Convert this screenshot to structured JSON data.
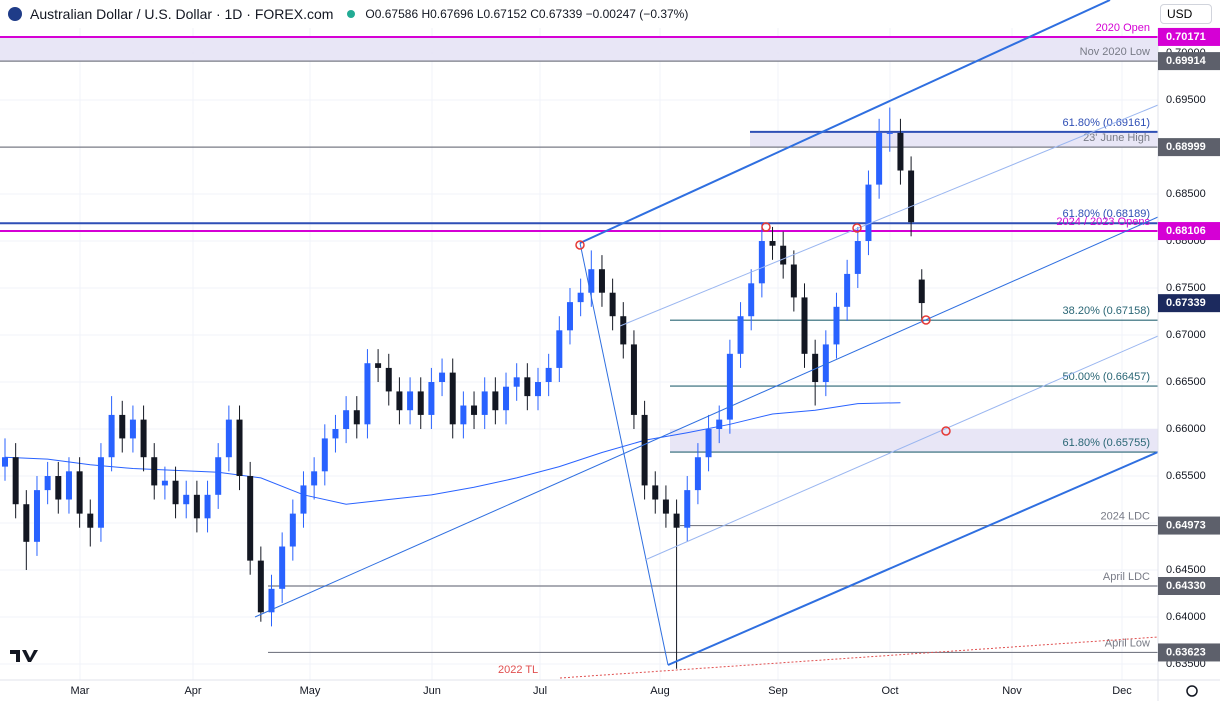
{
  "header": {
    "symbol": "Australian Dollar / U.S. Dollar · 1D · FOREX.com",
    "ohlc": "O0.67586 H0.67696 L0.67152 C0.67339 −0.00247 (−0.37%)",
    "currency": "USD"
  },
  "chart_data": {
    "type": "candlestick",
    "up_color": "#2962ff",
    "down_color": "#131722",
    "ylim": [
      0.6333,
      0.70564
    ],
    "yticks": [
      {
        "value": 0.635,
        "label": "0.63500"
      },
      {
        "value": 0.64,
        "label": "0.64000"
      },
      {
        "value": 0.645,
        "label": "0.64500"
      },
      {
        "value": 0.65,
        "label": "0.65000"
      },
      {
        "value": 0.655,
        "label": "0.65500"
      },
      {
        "value": 0.66,
        "label": "0.66000"
      },
      {
        "value": 0.665,
        "label": "0.66500"
      },
      {
        "value": 0.67,
        "label": "0.67000"
      },
      {
        "value": 0.675,
        "label": "0.67500"
      },
      {
        "value": 0.68,
        "label": "0.68000"
      },
      {
        "value": 0.685,
        "label": "0.68500"
      },
      {
        "value": 0.69,
        "label": "0.69000"
      },
      {
        "value": 0.695,
        "label": "0.69500"
      },
      {
        "value": 0.7,
        "label": "0.70000"
      }
    ],
    "months": [
      "Mar",
      "Apr",
      "May",
      "Jun",
      "Jul",
      "Aug",
      "Sep",
      "Oct",
      "Nov",
      "Dec"
    ],
    "grid": true,
    "candles": [
      [
        0.656,
        0.659,
        0.6545,
        0.657
      ],
      [
        0.657,
        0.6585,
        0.6505,
        0.652
      ],
      [
        0.652,
        0.6535,
        0.645,
        0.648
      ],
      [
        0.648,
        0.655,
        0.6465,
        0.6535
      ],
      [
        0.6535,
        0.6565,
        0.652,
        0.655
      ],
      [
        0.655,
        0.6565,
        0.651,
        0.6525
      ],
      [
        0.6525,
        0.657,
        0.651,
        0.6555
      ],
      [
        0.6555,
        0.657,
        0.6495,
        0.651
      ],
      [
        0.651,
        0.6525,
        0.6475,
        0.6495
      ],
      [
        0.6495,
        0.6585,
        0.648,
        0.657
      ],
      [
        0.657,
        0.6635,
        0.6555,
        0.6615
      ],
      [
        0.6615,
        0.663,
        0.6575,
        0.659
      ],
      [
        0.659,
        0.6625,
        0.6575,
        0.661
      ],
      [
        0.661,
        0.6625,
        0.6555,
        0.657
      ],
      [
        0.657,
        0.6585,
        0.6525,
        0.654
      ],
      [
        0.654,
        0.656,
        0.6525,
        0.6545
      ],
      [
        0.6545,
        0.656,
        0.6505,
        0.652
      ],
      [
        0.652,
        0.6545,
        0.6505,
        0.653
      ],
      [
        0.653,
        0.6545,
        0.649,
        0.6505
      ],
      [
        0.6505,
        0.6545,
        0.649,
        0.653
      ],
      [
        0.653,
        0.6585,
        0.6515,
        0.657
      ],
      [
        0.657,
        0.6625,
        0.6555,
        0.661
      ],
      [
        0.661,
        0.6625,
        0.6535,
        0.655
      ],
      [
        0.655,
        0.6565,
        0.6445,
        0.646
      ],
      [
        0.646,
        0.6475,
        0.6395,
        0.6405
      ],
      [
        0.6405,
        0.6445,
        0.639,
        0.643
      ],
      [
        0.643,
        0.649,
        0.6415,
        0.6475
      ],
      [
        0.6475,
        0.6525,
        0.646,
        0.651
      ],
      [
        0.651,
        0.6555,
        0.6495,
        0.654
      ],
      [
        0.654,
        0.657,
        0.6525,
        0.6555
      ],
      [
        0.6555,
        0.6605,
        0.654,
        0.659
      ],
      [
        0.659,
        0.6615,
        0.6575,
        0.66
      ],
      [
        0.66,
        0.6635,
        0.6585,
        0.662
      ],
      [
        0.662,
        0.6635,
        0.659,
        0.6605
      ],
      [
        0.6605,
        0.6685,
        0.659,
        0.667
      ],
      [
        0.667,
        0.6685,
        0.665,
        0.6665
      ],
      [
        0.6665,
        0.668,
        0.6625,
        0.664
      ],
      [
        0.664,
        0.6655,
        0.6605,
        0.662
      ],
      [
        0.662,
        0.6655,
        0.6605,
        0.664
      ],
      [
        0.664,
        0.6655,
        0.66,
        0.6615
      ],
      [
        0.6615,
        0.6665,
        0.66,
        0.665
      ],
      [
        0.665,
        0.6675,
        0.6635,
        0.666
      ],
      [
        0.666,
        0.6675,
        0.659,
        0.6605
      ],
      [
        0.6605,
        0.664,
        0.659,
        0.6625
      ],
      [
        0.6625,
        0.664,
        0.66,
        0.6615
      ],
      [
        0.6615,
        0.6655,
        0.66,
        0.664
      ],
      [
        0.664,
        0.6655,
        0.6605,
        0.662
      ],
      [
        0.662,
        0.666,
        0.6605,
        0.6645
      ],
      [
        0.6645,
        0.667,
        0.663,
        0.6655
      ],
      [
        0.6655,
        0.667,
        0.662,
        0.6635
      ],
      [
        0.6635,
        0.6665,
        0.662,
        0.665
      ],
      [
        0.665,
        0.668,
        0.6635,
        0.6665
      ],
      [
        0.6665,
        0.672,
        0.665,
        0.6705
      ],
      [
        0.6705,
        0.675,
        0.669,
        0.6735
      ],
      [
        0.6735,
        0.676,
        0.672,
        0.6745
      ],
      [
        0.6745,
        0.679,
        0.673,
        0.677
      ],
      [
        0.677,
        0.6785,
        0.673,
        0.6745
      ],
      [
        0.6745,
        0.676,
        0.6705,
        0.672
      ],
      [
        0.672,
        0.6735,
        0.6675,
        0.669
      ],
      [
        0.669,
        0.6705,
        0.66,
        0.6615
      ],
      [
        0.6615,
        0.663,
        0.6525,
        0.654
      ],
      [
        0.654,
        0.6555,
        0.651,
        0.6525
      ],
      [
        0.6525,
        0.654,
        0.6495,
        0.651
      ],
      [
        0.651,
        0.6525,
        0.6345,
        0.6495
      ],
      [
        0.6495,
        0.655,
        0.648,
        0.6535
      ],
      [
        0.6535,
        0.6585,
        0.652,
        0.657
      ],
      [
        0.657,
        0.6615,
        0.6555,
        0.66
      ],
      [
        0.66,
        0.6625,
        0.6585,
        0.661
      ],
      [
        0.661,
        0.6695,
        0.6595,
        0.668
      ],
      [
        0.668,
        0.6735,
        0.6665,
        0.672
      ],
      [
        0.672,
        0.677,
        0.6705,
        0.6755
      ],
      [
        0.6755,
        0.682,
        0.674,
        0.68
      ],
      [
        0.68,
        0.6815,
        0.678,
        0.6795
      ],
      [
        0.6795,
        0.681,
        0.676,
        0.6775
      ],
      [
        0.6775,
        0.679,
        0.6725,
        0.674
      ],
      [
        0.674,
        0.6755,
        0.6665,
        0.668
      ],
      [
        0.668,
        0.6695,
        0.6625,
        0.665
      ],
      [
        0.665,
        0.6705,
        0.6635,
        0.669
      ],
      [
        0.669,
        0.6745,
        0.6675,
        0.673
      ],
      [
        0.673,
        0.678,
        0.6715,
        0.6765
      ],
      [
        0.6765,
        0.6815,
        0.675,
        0.68
      ],
      [
        0.68,
        0.6875,
        0.6785,
        0.686
      ],
      [
        0.686,
        0.693,
        0.6845,
        0.6915
      ],
      [
        0.6915,
        0.6942,
        0.6895,
        0.6915
      ],
      [
        0.6915,
        0.693,
        0.686,
        0.6875
      ],
      [
        0.6875,
        0.689,
        0.6805,
        0.682
      ],
      [
        0.6759,
        0.677,
        0.6715,
        0.6734
      ]
    ],
    "moving_average": {
      "color": "#2962ff",
      "values": [
        0.657,
        0.6568,
        0.6562,
        0.6558,
        0.6556,
        0.6554,
        0.6548,
        0.653,
        0.652,
        0.6525,
        0.653,
        0.6538,
        0.6548,
        0.656,
        0.6575,
        0.6588,
        0.6596,
        0.6605,
        0.6616,
        0.662,
        0.6627,
        0.6628
      ]
    },
    "bands": [
      [
        0.69914,
        0.70171
      ],
      [
        0.68999,
        0.69161
      ],
      [
        0.65755,
        0.66
      ]
    ],
    "levels": [
      {
        "value": 0.70171,
        "label": "0.70171",
        "note": "2020 Open",
        "color": "#d500d5"
      },
      {
        "value": 0.69914,
        "label": "0.69914",
        "note": "Nov 2020 Low",
        "color": "#787b86"
      },
      {
        "value": 0.69161,
        "note": "61.80% (0.69161)",
        "color": "#2f4fb5"
      },
      {
        "value": 0.68999,
        "label": "0.68999",
        "note": "23' June High",
        "color": "#787b86"
      },
      {
        "value": 0.68189,
        "note": "61.80% (0.68189)",
        "color": "#2f4fb5"
      },
      {
        "value": 0.68106,
        "label": "0.68106",
        "note": "2024 / 2023 Opens",
        "color": "#d500d5"
      },
      {
        "value": 0.67339,
        "label": "0.67339",
        "color": "#1c2a5e"
      },
      {
        "value": 0.67158,
        "note": "38.20% (0.67158)",
        "color": "#2a6675"
      },
      {
        "value": 0.66457,
        "note": "50.00% (0.66457)",
        "color": "#2a6675"
      },
      {
        "value": 0.65755,
        "note": "61.80% (0.65755)",
        "color": "#2a6675"
      },
      {
        "value": 0.64973,
        "label": "0.64973",
        "note": "2024 LDC",
        "color": "#787b86"
      },
      {
        "value": 0.6433,
        "label": "0.64330",
        "note": "April LDC",
        "color": "#787b86"
      },
      {
        "value": 0.63623,
        "label": "0.63623",
        "note": "April Low",
        "color": "#787b86"
      }
    ],
    "trendline_label": "2022 TL"
  }
}
